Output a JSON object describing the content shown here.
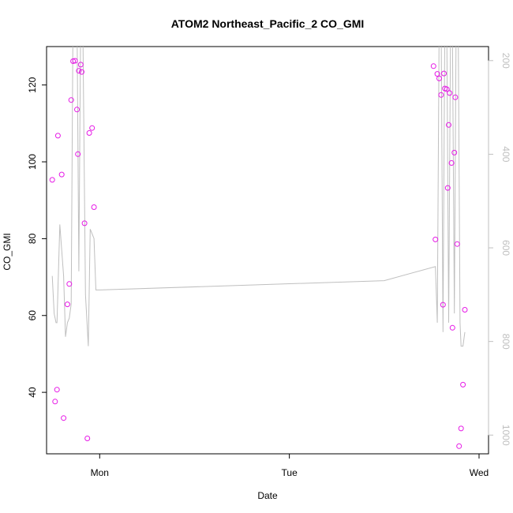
{
  "chart_data": {
    "type": "scatter",
    "title": "ATOM2 Northeast_Pacific_2 CO_GMI",
    "xlabel": "Date",
    "ylabel": "CO_GMI",
    "x_ticks": [
      {
        "x": 0.0,
        "label": "Mon"
      },
      {
        "x": 1.0,
        "label": "Tue"
      },
      {
        "x": 2.0,
        "label": "Wed"
      }
    ],
    "xlim": [
      -0.28,
      2.05
    ],
    "ylim": [
      24.0,
      130.0
    ],
    "y_ticks": [
      40,
      60,
      80,
      100,
      120
    ],
    "y2lim": [
      1040,
      170
    ],
    "y2_ticks": [
      200,
      400,
      600,
      800,
      1000
    ],
    "series": [
      {
        "kind": "points",
        "color": "#e619e6",
        "points": [
          [
            -0.25,
            95.3
          ],
          [
            -0.235,
            37.6
          ],
          [
            -0.225,
            40.7
          ],
          [
            -0.22,
            106.8
          ],
          [
            -0.2,
            96.7
          ],
          [
            -0.19,
            33.3
          ],
          [
            -0.17,
            62.9
          ],
          [
            -0.16,
            68.2
          ],
          [
            -0.15,
            116.1
          ],
          [
            -0.14,
            126.2
          ],
          [
            -0.13,
            126.3
          ],
          [
            -0.12,
            113.6
          ],
          [
            -0.115,
            102.0
          ],
          [
            -0.11,
            123.7
          ],
          [
            -0.1,
            125.3
          ],
          [
            -0.095,
            123.4
          ],
          [
            -0.08,
            84.0
          ],
          [
            -0.065,
            28.0
          ],
          [
            -0.055,
            107.5
          ],
          [
            -0.04,
            108.8
          ],
          [
            -0.03,
            88.2
          ],
          [
            1.76,
            124.9
          ],
          [
            1.77,
            79.8
          ],
          [
            1.78,
            122.9
          ],
          [
            1.79,
            121.7
          ],
          [
            1.8,
            117.4
          ],
          [
            1.81,
            62.8
          ],
          [
            1.815,
            123.0
          ],
          [
            1.82,
            119.1
          ],
          [
            1.83,
            118.9
          ],
          [
            1.835,
            93.2
          ],
          [
            1.84,
            109.6
          ],
          [
            1.845,
            117.9
          ],
          [
            1.855,
            99.7
          ],
          [
            1.86,
            56.8
          ],
          [
            1.87,
            102.4
          ],
          [
            1.875,
            116.8
          ],
          [
            1.885,
            78.6
          ],
          [
            1.895,
            26.0
          ],
          [
            1.905,
            30.6
          ],
          [
            1.915,
            42.0
          ],
          [
            1.925,
            61.5
          ]
        ]
      },
      {
        "kind": "line",
        "axis": "right",
        "color": "#bfbfbf",
        "segments": [
          [
            [
              -0.25,
              660
            ],
            [
              -0.24,
              740
            ],
            [
              -0.23,
              760
            ],
            [
              -0.225,
              760
            ],
            [
              -0.21,
              550
            ],
            [
              -0.19,
              660
            ],
            [
              -0.18,
              790
            ],
            [
              -0.17,
              760
            ],
            [
              -0.16,
              750
            ],
            [
              -0.15,
              720
            ],
            [
              -0.14,
              80
            ],
            [
              -0.13,
              80
            ],
            [
              -0.12,
              90
            ],
            [
              -0.11,
              650
            ],
            [
              -0.1,
              90
            ],
            [
              -0.09,
              80
            ],
            [
              -0.075,
              700
            ],
            [
              -0.06,
              810
            ],
            [
              -0.05,
              560
            ],
            [
              -0.04,
              570
            ],
            [
              -0.03,
              580
            ],
            [
              -0.02,
              690
            ],
            [
              0.0,
              690
            ],
            [
              1.5,
              670
            ],
            [
              1.77,
              640
            ],
            [
              1.78,
              760
            ],
            [
              1.79,
              100
            ],
            [
              1.8,
              100
            ],
            [
              1.81,
              780
            ],
            [
              1.82,
              100
            ],
            [
              1.83,
              130
            ],
            [
              1.84,
              760
            ],
            [
              1.85,
              120
            ],
            [
              1.86,
              150
            ],
            [
              1.87,
              740
            ],
            [
              1.88,
              80
            ],
            [
              1.89,
              100
            ],
            [
              1.9,
              760
            ],
            [
              1.905,
              810
            ],
            [
              1.915,
              810
            ],
            [
              1.925,
              780
            ]
          ]
        ]
      }
    ]
  }
}
